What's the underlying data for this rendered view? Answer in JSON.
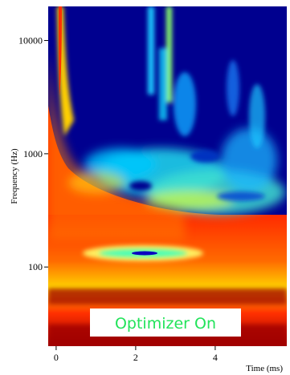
{
  "chart_data": {
    "type": "heatmap",
    "title": "",
    "xlabel": "Time (ms)",
    "ylabel": "Frequency (Hz)",
    "xlim": [
      -0.2,
      5.8
    ],
    "ylim": [
      20,
      20000
    ],
    "yscale": "log",
    "x_ticks": [
      0,
      2,
      4
    ],
    "x_tick_labels": [
      "0",
      "2",
      "4"
    ],
    "y_ticks": [
      100,
      1000,
      10000
    ],
    "y_tick_labels": [
      "100",
      "1000",
      "10000"
    ],
    "colormap": "jet",
    "colors": {
      "low": "#00008f",
      "mid": "#00ffff",
      "high": "#ff3000",
      "max": "#800000"
    },
    "annotation": {
      "text": "Optimizer On",
      "text_color": "#22e35a",
      "background": "#ffffff"
    },
    "features": [
      {
        "name": "onset ridge",
        "time_ms": 0.15,
        "freq_range_hz": [
          20,
          20000
        ],
        "level": "high"
      },
      {
        "name": "sustained low-frequency energy",
        "time_range_ms": [
          0,
          5.8
        ],
        "freq_range_hz": [
          20,
          400
        ],
        "level": "high"
      },
      {
        "name": "band near 120 Hz",
        "time_range_ms": [
          0.8,
          3.6
        ],
        "freq_hz": 120,
        "level": "max"
      },
      {
        "name": "mid-frequency decay",
        "time_range_ms": [
          0.8,
          5.8
        ],
        "freq_range_hz": [
          200,
          2000
        ],
        "level": "mid"
      },
      {
        "name": "high-frequency ridge",
        "time_ms": 2.5,
        "freq_range_hz": [
          1000,
          20000
        ],
        "level": "mid"
      }
    ]
  }
}
